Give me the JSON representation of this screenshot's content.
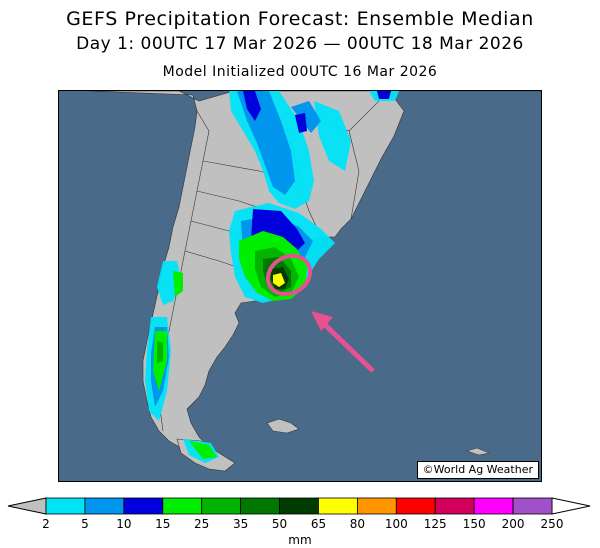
{
  "header": {
    "title": "GEFS Precipitation Forecast: Ensemble Median",
    "period": "Day 1: 00UTC 17 Mar 2026 — 00UTC 18 Mar 2026",
    "init": "Model Initialized 00UTC 16 Mar 2026"
  },
  "map": {
    "region": "southern South America (Argentina, Chile, Uruguay)",
    "credit": "©World Ag Weather",
    "ocean_color": "#4a6a8a",
    "land_color": "#c0c0c0",
    "annotation": {
      "type": "pink oval circling heaviest precipitation maximum near Buenos Aires / Bahia Blanca coast, with pink arrow pointing to it",
      "color": "#e8518f"
    }
  },
  "legend": {
    "unit": "mm",
    "ticks": [
      "2",
      "5",
      "10",
      "15",
      "25",
      "35",
      "50",
      "65",
      "80",
      "100",
      "125",
      "150",
      "200",
      "250"
    ],
    "colors": [
      "#00e4f8",
      "#0096ee",
      "#0000dd",
      "#00ee00",
      "#00b400",
      "#007800",
      "#003c00",
      "#ffff00",
      "#ff9600",
      "#ff0000",
      "#d2005a",
      "#ff00ff",
      "#a050c8"
    ],
    "below_color": "#c0c0c0",
    "above_color": "#ffffff"
  }
}
